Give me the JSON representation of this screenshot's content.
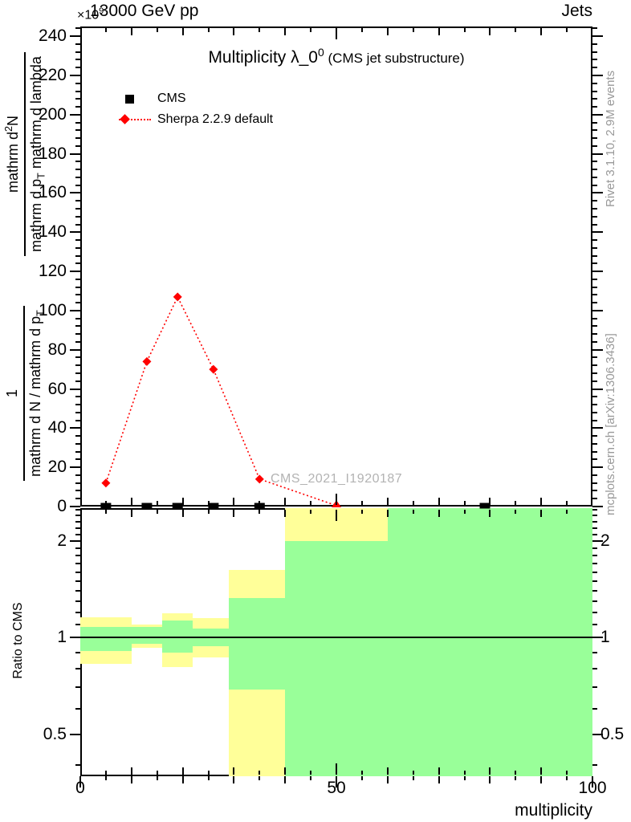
{
  "header": {
    "scale_prefix": "×10",
    "scale_exp": "9",
    "beam": "13000 GeV pp",
    "right": "Jets"
  },
  "title": {
    "main": "Multiplicity λ_0",
    "sup": "0",
    "suffix": " (CMS jet substructure)"
  },
  "legend": [
    {
      "label": "CMS",
      "marker": "square",
      "color": "#000000"
    },
    {
      "label": "Sherpa 2.2.9 default",
      "marker": "diamond-line",
      "color": "#ff0000"
    }
  ],
  "ylabel": {
    "frac1_num": "1",
    "frac1_den_a": "mathrm d N / mathrm d p",
    "frac1_den_sub": "T",
    "frac2_num_a": "mathrm d",
    "frac2_num_sup": "2",
    "frac2_num_b": "N",
    "frac2_den_a": "mathrm d p",
    "frac2_den_sub": "T",
    "frac2_den_b": " mathrm d lambda"
  },
  "ratio_label": "Ratio to CMS",
  "xlabel": "multiplicity",
  "watermark": "CMS_2021_I1920187",
  "side_text_top": "Rivet 3.1.10,  2.9M events",
  "side_text_bottom": "mcplots.cern.ch [arXiv:1306.3436]",
  "colors": {
    "mc": "#ff0000",
    "data": "#000000",
    "band_outer": "#ffff99",
    "band_inner": "#99ff99",
    "gray_text": "#999999",
    "watermark": "#b3b3b3"
  },
  "chart_data": [
    {
      "type": "line",
      "panel": "main",
      "title": "Multiplicity λ_0^0 (CMS jet substructure)",
      "xlabel": "multiplicity",
      "ylabel": "1/(dN/dp_T) d²N/(dp_T dλ) [×10^9]",
      "xlim": [
        0,
        100
      ],
      "ylim": [
        0,
        245
      ],
      "x_tick_labels": [
        0,
        50,
        100
      ],
      "x_minor_step": 5,
      "x_medium_step": 10,
      "x_major_step": 50,
      "y_tick_labels": [
        0,
        20,
        40,
        60,
        80,
        100,
        120,
        140,
        160,
        180,
        200,
        220,
        240
      ],
      "y_major_step": 20,
      "y_minor_step": 4,
      "grid": false,
      "legend_position": "top-left",
      "series": [
        {
          "name": "CMS",
          "marker": "square",
          "color": "#000000",
          "line": "none",
          "x": [
            5,
            13,
            19,
            26,
            35,
            79
          ],
          "y": [
            1,
            1,
            1,
            1,
            1,
            1
          ]
        },
        {
          "name": "Sherpa 2.2.9 default",
          "marker": "diamond",
          "color": "#ff0000",
          "line": "dotted",
          "x": [
            5,
            13,
            19,
            26,
            35,
            50
          ],
          "y": [
            12,
            74,
            107,
            70,
            14,
            0.5
          ],
          "below_axis_marker_x": 50
        }
      ]
    },
    {
      "type": "ratio-bands",
      "panel": "ratio",
      "ylabel": "Ratio to CMS",
      "yscale": "log",
      "ylim": [
        0.37,
        2.535
      ],
      "y_tick_labels": [
        0.5,
        1,
        2
      ],
      "y_minor_ticks": [
        0.4,
        0.6,
        0.7,
        0.8,
        0.9,
        1.1,
        1.2,
        1.3,
        1.4,
        1.5,
        1.6,
        1.7,
        1.8,
        1.9,
        2.1,
        2.2,
        2.3,
        2.4,
        2.5
      ],
      "ref_line": 1,
      "bins": [
        {
          "x0": 0,
          "x1": 10,
          "outer": [
            0.83,
            1.16
          ],
          "inner": [
            0.91,
            1.08
          ]
        },
        {
          "x0": 10,
          "x1": 16,
          "outer": [
            0.93,
            1.1
          ],
          "inner": [
            0.96,
            1.08
          ]
        },
        {
          "x0": 16,
          "x1": 22,
          "outer": [
            0.81,
            1.19
          ],
          "inner": [
            0.9,
            1.13
          ]
        },
        {
          "x0": 22,
          "x1": 29,
          "outer": [
            0.87,
            1.15
          ],
          "inner": [
            0.94,
            1.07
          ]
        },
        {
          "x0": 29,
          "x1": 40,
          "outer": [
            0.37,
            1.63
          ],
          "inner": [
            0.69,
            1.33
          ]
        },
        {
          "x0": 40,
          "x1": 60,
          "outer": [
            0.37,
            2.535
          ],
          "inner": [
            0.37,
            2.0
          ]
        },
        {
          "x0": 60,
          "x1": 100,
          "outer": null,
          "inner": [
            0.37,
            2.535
          ]
        }
      ]
    }
  ]
}
